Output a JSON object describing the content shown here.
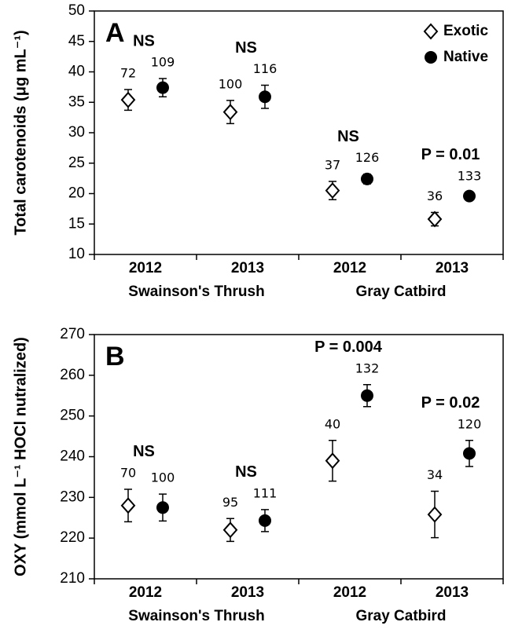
{
  "chart_data": [
    {
      "type": "dot-errorbar",
      "panel_label": "A",
      "y_label": "Total carotenoids (μg mL⁻¹)",
      "categories": [
        "2012",
        "2013",
        "2012",
        "2013"
      ],
      "groups": [
        "Swainson's Thrush",
        "Gray Catbird"
      ],
      "annotations": [
        "NS",
        "NS",
        "NS",
        "P = 0.01"
      ],
      "ylim": [
        10,
        50
      ],
      "yticks": [
        10,
        15,
        20,
        25,
        30,
        35,
        40,
        45,
        50
      ],
      "legend": "top-right",
      "series": [
        {
          "name": "Exotic",
          "marker": "diamond",
          "color": "#ffffff",
          "values": [
            35.4,
            33.4,
            20.5,
            15.8
          ],
          "errors": [
            1.7,
            1.9,
            1.5,
            1.1
          ],
          "n": [
            72,
            100,
            37,
            36
          ]
        },
        {
          "name": "Native",
          "marker": "circle",
          "color": "#000000",
          "values": [
            37.4,
            35.9,
            22.4,
            19.6
          ],
          "errors": [
            1.5,
            1.9,
            0.8,
            0.6
          ],
          "n": [
            109,
            116,
            126,
            133
          ]
        }
      ]
    },
    {
      "type": "dot-errorbar",
      "panel_label": "B",
      "y_label": "OXY (mmol L⁻¹ HOCl nutralized)",
      "categories": [
        "2012",
        "2013",
        "2012",
        "2013"
      ],
      "groups": [
        "Swainson's Thrush",
        "Gray Catbird"
      ],
      "annotations": [
        "NS",
        "NS",
        "P = 0.004",
        "P = 0.02"
      ],
      "ylim": [
        210,
        270
      ],
      "yticks": [
        210,
        220,
        230,
        240,
        250,
        260,
        270
      ],
      "series": [
        {
          "name": "Exotic",
          "marker": "diamond",
          "color": "#ffffff",
          "values": [
            228,
            222,
            239,
            225.8
          ],
          "errors": [
            4,
            2.8,
            5,
            5.7
          ],
          "n": [
            70,
            95,
            40,
            34
          ]
        },
        {
          "name": "Native",
          "marker": "circle",
          "color": "#000000",
          "values": [
            227.5,
            224.3,
            255,
            240.8
          ],
          "errors": [
            3.3,
            2.7,
            2.7,
            3.2
          ],
          "n": [
            100,
            111,
            132,
            120
          ]
        }
      ]
    }
  ]
}
